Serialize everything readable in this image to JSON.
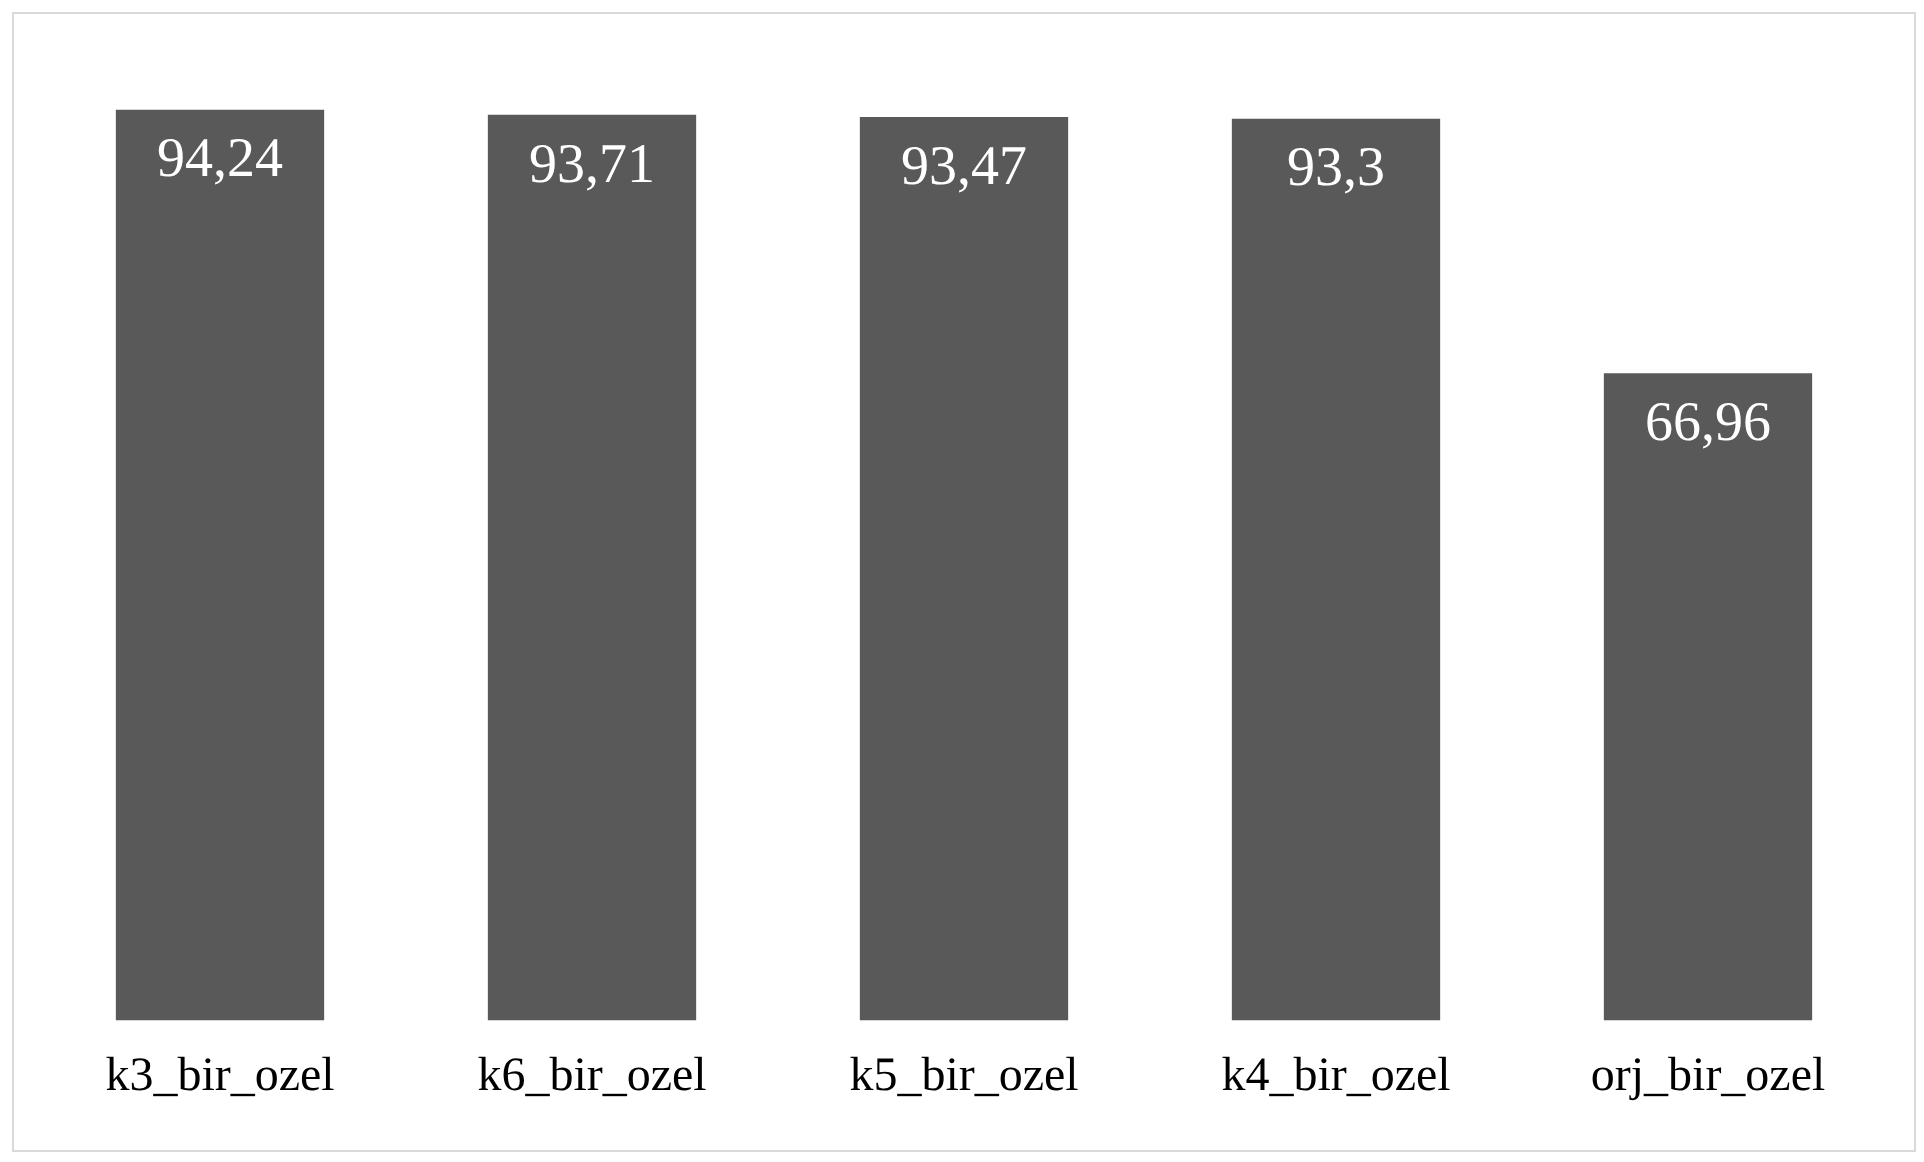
{
  "chart_data": {
    "type": "bar",
    "categories": [
      "k3_bir_ozel",
      "k6_bir_ozel",
      "k5_bir_ozel",
      "k4_bir_ozel",
      "orj_bir_ozel"
    ],
    "values": [
      94.24,
      93.71,
      93.47,
      93.3,
      66.96
    ],
    "value_labels": [
      "94,24",
      "93,71",
      "93,47",
      "93,3",
      "66,96"
    ],
    "color": "#595959",
    "grid": false,
    "legend": false
  }
}
